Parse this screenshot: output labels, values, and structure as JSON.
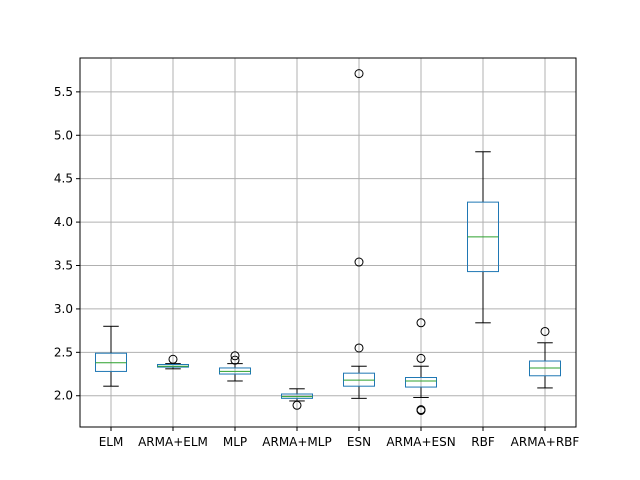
{
  "chart_data": {
    "type": "box",
    "title": "",
    "xlabel": "",
    "ylabel": "",
    "ylim": [
      1.64,
      5.89
    ],
    "yticks": [
      2.0,
      2.5,
      3.0,
      3.5,
      4.0,
      4.5,
      5.0,
      5.5
    ],
    "ytick_labels": [
      "2.0",
      "2.5",
      "3.0",
      "3.5",
      "4.0",
      "4.5",
      "5.0",
      "5.5"
    ],
    "grid": true,
    "colors": {
      "box": "#1f77b4",
      "median": "#2ca02c",
      "whisker": "#000000",
      "grid": "#b0b0b0"
    },
    "categories": [
      "ELM",
      "ARMA+ELM",
      "MLP",
      "ARMA+MLP",
      "ESN",
      "ARMA+ESN",
      "RBF",
      "ARMA+RBF"
    ],
    "boxes": [
      {
        "name": "ELM",
        "whislo": 2.11,
        "q1": 2.28,
        "med": 2.38,
        "q3": 2.49,
        "whishi": 2.8,
        "fliers": []
      },
      {
        "name": "ARMA+ELM",
        "whislo": 2.31,
        "q1": 2.33,
        "med": 2.34,
        "q3": 2.36,
        "whishi": 2.37,
        "fliers": [
          2.42
        ]
      },
      {
        "name": "MLP",
        "whislo": 2.17,
        "q1": 2.25,
        "med": 2.28,
        "q3": 2.32,
        "whishi": 2.37,
        "fliers": [
          2.41,
          2.46
        ]
      },
      {
        "name": "ARMA+MLP",
        "whislo": 1.94,
        "q1": 1.97,
        "med": 1.99,
        "q3": 2.02,
        "whishi": 2.08,
        "fliers": [
          1.89
        ]
      },
      {
        "name": "ESN",
        "whislo": 1.97,
        "q1": 2.11,
        "med": 2.18,
        "q3": 2.26,
        "whishi": 2.34,
        "fliers": [
          2.55,
          3.54,
          5.71
        ]
      },
      {
        "name": "ARMA+ESN",
        "whislo": 1.98,
        "q1": 2.1,
        "med": 2.17,
        "q3": 2.21,
        "whishi": 2.34,
        "fliers": [
          1.83,
          1.84,
          2.43,
          2.84
        ]
      },
      {
        "name": "RBF",
        "whislo": 2.84,
        "q1": 3.43,
        "med": 3.83,
        "q3": 4.23,
        "whishi": 4.81,
        "fliers": []
      },
      {
        "name": "ARMA+RBF",
        "whislo": 2.09,
        "q1": 2.23,
        "med": 2.32,
        "q3": 2.4,
        "whishi": 2.61,
        "fliers": [
          2.74
        ]
      }
    ]
  }
}
